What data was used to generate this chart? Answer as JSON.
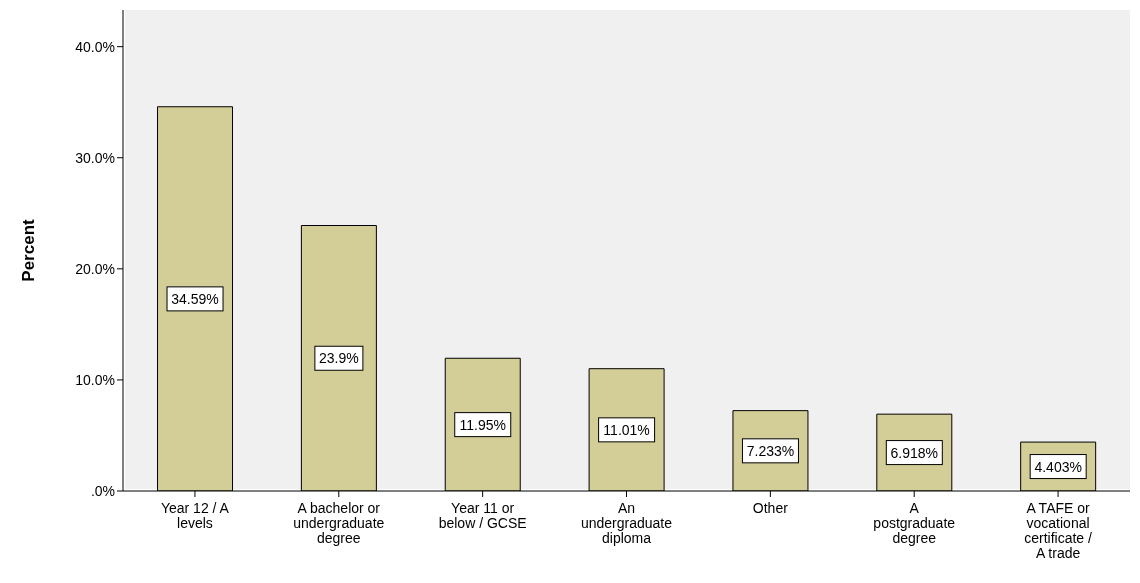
{
  "chart_data": {
    "type": "bar",
    "ylabel": "Percent",
    "categories": [
      "Year 12 / A levels",
      "A bachelor or undergraduate degree",
      "Year 11 or below / GCSE",
      "An undergraduate diploma",
      "Other",
      "A postgraduate degree",
      "A TAFE or vocational certificate / A trade"
    ],
    "values": [
      34.59,
      23.9,
      11.95,
      11.01,
      7.233,
      6.918,
      4.403
    ],
    "value_labels": [
      "34.59%",
      "23.9%",
      "11.95%",
      "11.01%",
      "7.233%",
      "6.918%",
      "4.403%"
    ],
    "color": "#d3ce98",
    "ylim": [
      0,
      43.3
    ],
    "yticks": [
      {
        "value": 0,
        "label": ".0%"
      },
      {
        "value": 10,
        "label": "10.0%"
      },
      {
        "value": 20,
        "label": "20.0%"
      },
      {
        "value": 30,
        "label": "30.0%"
      },
      {
        "value": 40,
        "label": "40.0%"
      }
    ],
    "grid": false,
    "legend": false
  }
}
